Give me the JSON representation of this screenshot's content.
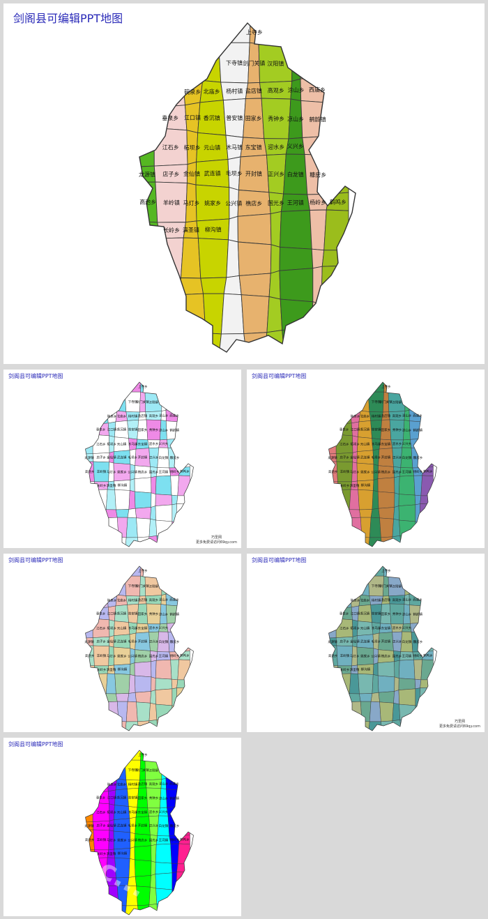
{
  "title": "剑阁县可编辑PPT地图",
  "towns": [
    "上寺乡",
    "下寺镇",
    "剑门关镇",
    "汉阳镇",
    "碗泉乡",
    "北庙乡",
    "杨村镇",
    "盐店镇",
    "高观乡",
    "涂山乡",
    "西庙乡",
    "垂泉乡",
    "江口镇",
    "香沉镇",
    "普安镇",
    "田家乡",
    "秀钟乡",
    "凉山乡",
    "鹤龄镇",
    "江石乡",
    "柘坝乡",
    "元山镇",
    "木马镇",
    "东宝镇",
    "迎水乡",
    "义兴乡",
    "龙源镇",
    "店子乡",
    "金仙镇",
    "武连镇",
    "毛坝乡",
    "开封镇",
    "正兴乡",
    "白龙镇",
    "糠房乡",
    "高池乡",
    "羊岭镇",
    "马灯乡",
    "姚家乡",
    "公兴镇",
    "樵店乡",
    "国光乡",
    "王河镇",
    "杨岭乡",
    "鹤鸣乡",
    "长岭乡",
    "演圣镇",
    "柳沟镇"
  ],
  "colors": {
    "green": "#55b722",
    "yellowgreen": "#c8d400",
    "lightgreen": "#a3cc22",
    "olive": "#9bbd1c",
    "gold": "#e6c324",
    "tan": "#e7b26e",
    "peach": "#eebfa7",
    "pink": "#f3d2d0",
    "white": "#f2f2f2"
  },
  "footer": {
    "line1": "巧圣网",
    "line2": "更多免费请访问69qy.com"
  },
  "watermark": "www.c..."
}
